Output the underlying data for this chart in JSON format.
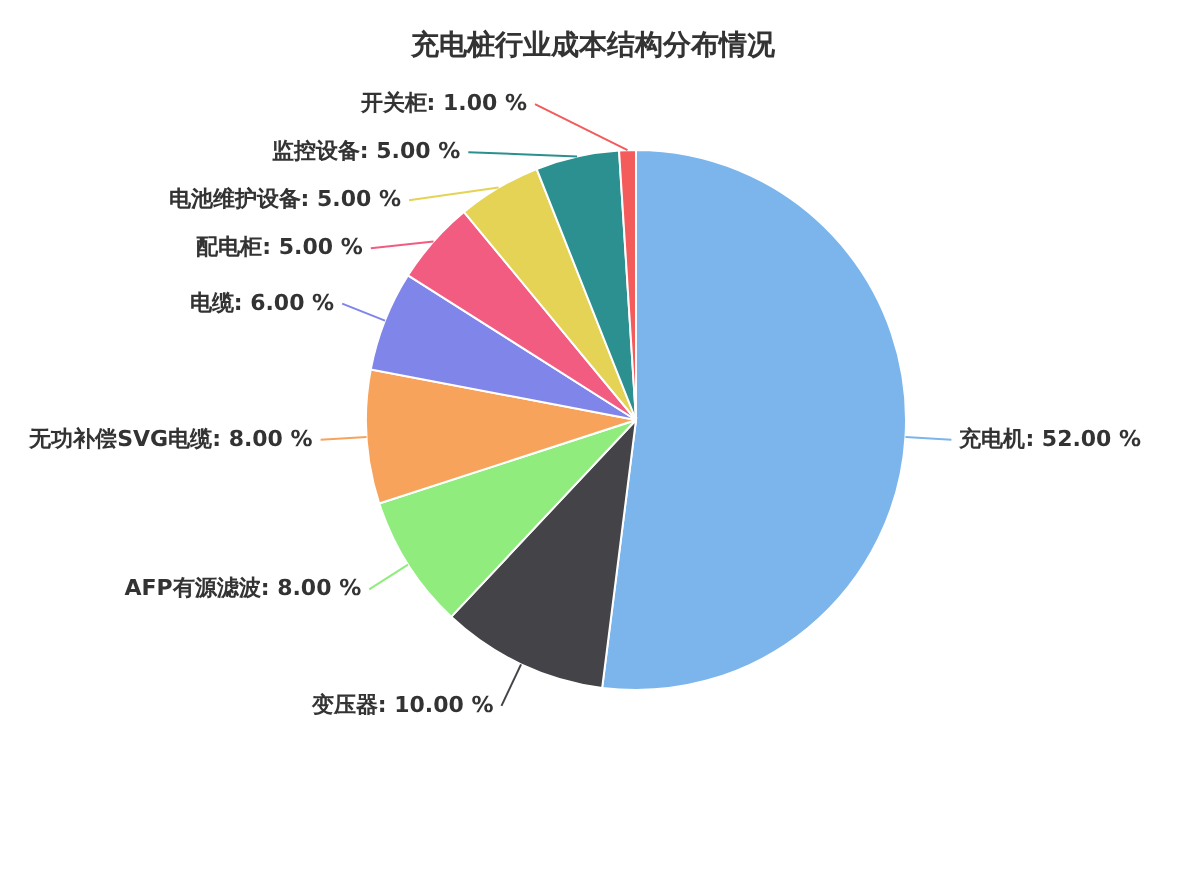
{
  "chart_data": {
    "type": "pie",
    "title": "充电桩行业成本结构分布情况",
    "categories": [
      "充电机",
      "变压器",
      "AFP有源滤波",
      "无功补偿SVG电缆",
      "电缆",
      "配电柜",
      "电池维护设备",
      "监控设备",
      "开关柜"
    ],
    "values": [
      52,
      10,
      8,
      8,
      6,
      5,
      5,
      5,
      1
    ],
    "value_labels": [
      "52.00 %",
      "10.00 %",
      "8.00 %",
      "8.00 %",
      "6.00 %",
      "5.00 %",
      "5.00 %",
      "5.00 %",
      "1.00 %"
    ],
    "colors": [
      "#7cb5ec",
      "#434348",
      "#90ed7d",
      "#f7a35c",
      "#8085e9",
      "#f15c80",
      "#e4d354",
      "#2b908f",
      "#f45b5b"
    ]
  }
}
